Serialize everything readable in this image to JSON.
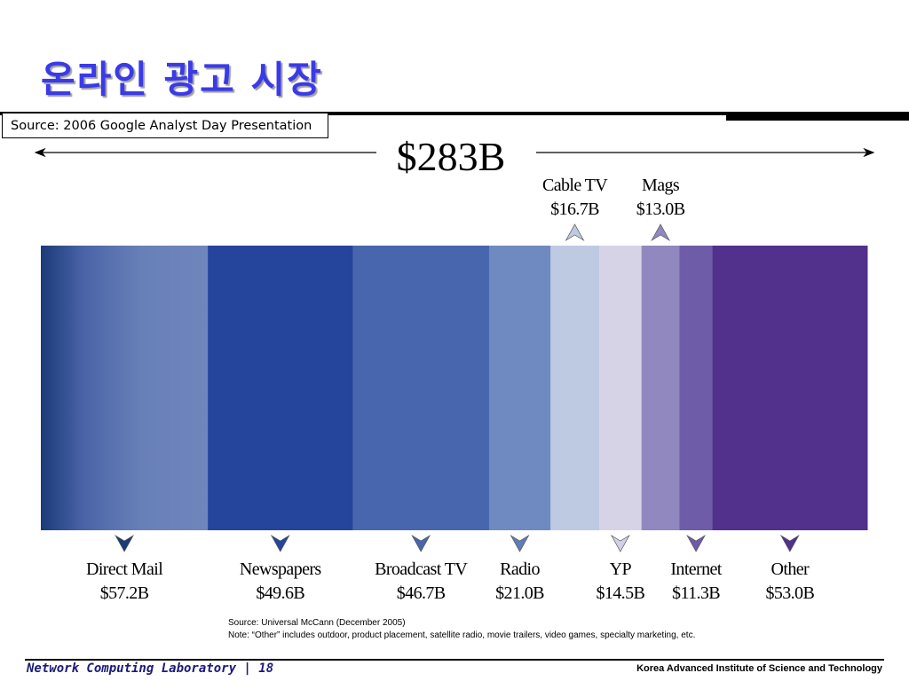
{
  "slide": {
    "title": "온라인 광고 시장",
    "source": "Source: 2006 Google Analyst Day Presentation"
  },
  "chart_data": {
    "type": "bar",
    "title": "$283B",
    "total_label": "$283B",
    "categories": [
      "Direct Mail",
      "Newspapers",
      "Broadcast TV",
      "Radio",
      "Cable TV",
      "YP",
      "Mags",
      "Internet",
      "Other"
    ],
    "values": [
      57.2,
      49.6,
      46.7,
      21.0,
      16.7,
      14.5,
      13.0,
      11.3,
      53.0
    ],
    "value_labels": [
      "$57.2B",
      "$49.6B",
      "$46.7B",
      "$21.0B",
      "$16.7B",
      "$14.5B",
      "$13.0B",
      "$11.3B",
      "$53.0B"
    ],
    "label_positions": [
      "below",
      "below",
      "below",
      "below",
      "above",
      "below",
      "above",
      "below",
      "below"
    ],
    "colors": [
      "#6880b8",
      "#25449c",
      "#4866ae",
      "#6e8ac0",
      "#bec9e2",
      "#d6d3e6",
      "#9088bf",
      "#6f5ca8",
      "#51318c"
    ],
    "arrow_colors": [
      "#1b3a78",
      "#25449c",
      "#4866ae",
      "#5f7cb6",
      "#bec9e2",
      "#d0d0e8",
      "#9088bf",
      "#6f5ca8",
      "#51318c"
    ]
  },
  "notes": {
    "source": "Source: Universal McCann (December 2005)",
    "note": "Note: “Other” includes outdoor, product placement, satellite radio, movie trailers, video games, specialty marketing, etc."
  },
  "footer": {
    "left": "Network Computing Laboratory | 18",
    "right": "Korea Advanced Institute of Science and Technology"
  }
}
